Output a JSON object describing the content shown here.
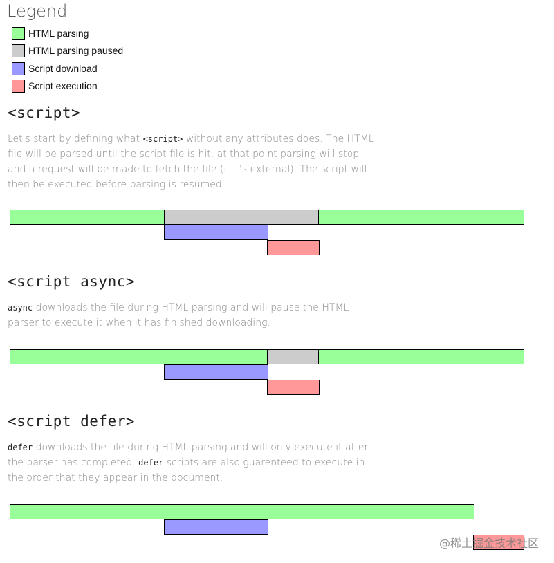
{
  "legend": {
    "title": "Legend",
    "items": [
      {
        "label": "HTML parsing",
        "color": "#99ff99"
      },
      {
        "label": "HTML parsing paused",
        "color": "#cccccc"
      },
      {
        "label": "Script download",
        "color": "#9999ff"
      },
      {
        "label": "Script execution",
        "color": "#ff9999"
      }
    ]
  },
  "sections": [
    {
      "title": "<script>",
      "desc_parts": [
        {
          "text": "Let's start by defining what ",
          "code": false
        },
        {
          "text": "<script>",
          "code": true
        },
        {
          "text": " without any attributes does. The HTML file will be parsed until the script file is hit, at that point parsing will stop and a request will be made to fetch the file (if it's external). The script will then be executed before parsing is resumed.",
          "code": false
        }
      ]
    },
    {
      "title": "<script async>",
      "desc_parts": [
        {
          "text": "async",
          "code": true
        },
        {
          "text": " downloads the file during HTML parsing and will pause the HTML parser to execute it when it has finished downloading.",
          "code": false
        }
      ]
    },
    {
      "title": "<script defer>",
      "desc_parts": [
        {
          "text": "defer",
          "code": true
        },
        {
          "text": " downloads the file during HTML parsing and will only execute it after the parser has completed. ",
          "code": false
        },
        {
          "text": "defer",
          "code": true
        },
        {
          "text": " scripts are also guarenteed to execute in the order that they appear in the document.",
          "code": false
        }
      ]
    }
  ],
  "watermark": "@稀土掘金技术社区"
}
